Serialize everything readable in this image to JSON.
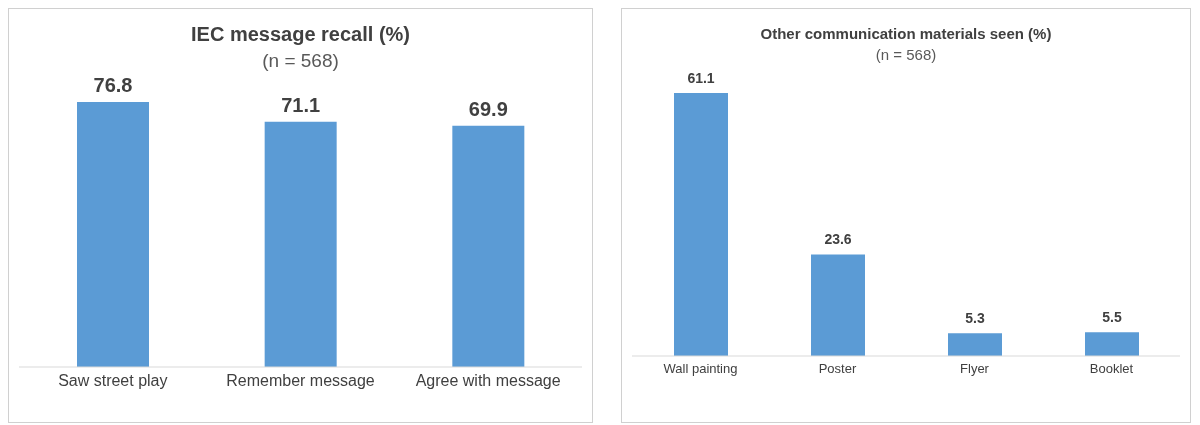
{
  "chart_data": [
    {
      "type": "bar",
      "title": "IEC message recall (%)",
      "subtitle": "(n = 568)",
      "categories": [
        "Saw street play",
        "Remember message",
        "Agree with message"
      ],
      "values": [
        76.8,
        71.1,
        69.9
      ],
      "color": "#5b9bd5",
      "data_labels": true,
      "tick_labels": "x"
    },
    {
      "type": "bar",
      "title": "Other communication materials seen (%)",
      "subtitle": "(n = 568)",
      "categories": [
        "Wall painting",
        "Poster",
        "Flyer",
        "Booklet"
      ],
      "values": [
        61.1,
        23.6,
        5.3,
        5.5
      ],
      "color": "#5b9bd5",
      "data_labels": true,
      "tick_labels": "x"
    }
  ]
}
